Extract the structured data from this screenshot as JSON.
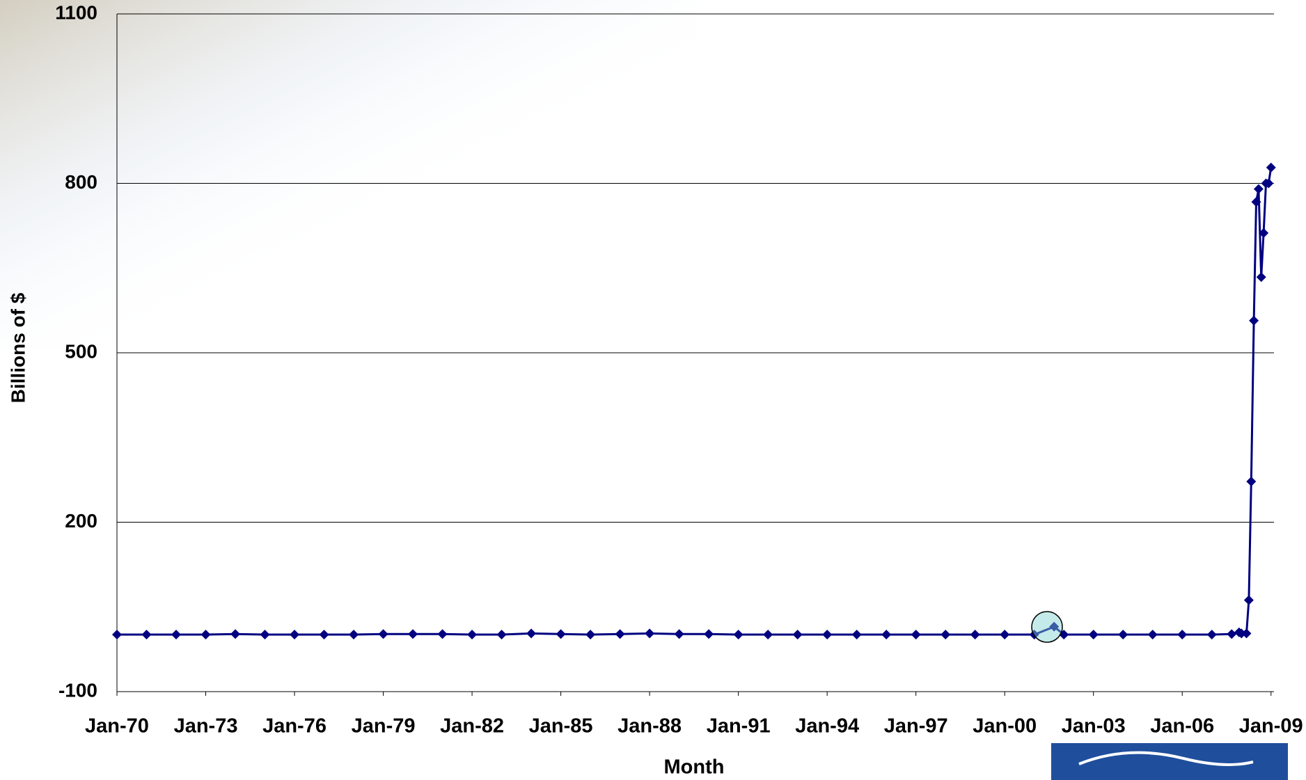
{
  "chart_data": {
    "type": "line",
    "x_label": "Month",
    "y_label": "Billions of $",
    "x": [
      1970,
      1971,
      1972,
      1973,
      1974,
      1975,
      1976,
      1977,
      1978,
      1979,
      1980,
      1981,
      1982,
      1983,
      1984,
      1985,
      1986,
      1987,
      1988,
      1989,
      1990,
      1991,
      1992,
      1993,
      1994,
      1995,
      1996,
      1997,
      1998,
      1999,
      2000,
      2001,
      2001.67,
      2002,
      2003,
      2004,
      2005,
      2006,
      2007,
      2007.67,
      2007.92,
      2008,
      2008.17,
      2008.25,
      2008.33,
      2008.42,
      2008.5,
      2008.58,
      2008.67,
      2008.75,
      2008.83,
      2008.92,
      2009
    ],
    "values": [
      1,
      1,
      1,
      1,
      2,
      1,
      1,
      1,
      1,
      2,
      2,
      2,
      1,
      1,
      3,
      2,
      1,
      2,
      3,
      2,
      2,
      1,
      1,
      1,
      1,
      1,
      1,
      1,
      1,
      1,
      1,
      1,
      15,
      1,
      1,
      1,
      1,
      1,
      1,
      2,
      5,
      3,
      3,
      62,
      272,
      557,
      767,
      790,
      634,
      712,
      800,
      800,
      828
    ],
    "color": "#000080",
    "xlim": [
      1970,
      2009.1
    ],
    "xticks": [
      {
        "value": 1970,
        "label": "Jan-70"
      },
      {
        "value": 1973,
        "label": "Jan-73"
      },
      {
        "value": 1976,
        "label": "Jan-76"
      },
      {
        "value": 1979,
        "label": "Jan-79"
      },
      {
        "value": 1982,
        "label": "Jan-82"
      },
      {
        "value": 1985,
        "label": "Jan-85"
      },
      {
        "value": 1988,
        "label": "Jan-88"
      },
      {
        "value": 1991,
        "label": "Jan-91"
      },
      {
        "value": 1994,
        "label": "Jan-94"
      },
      {
        "value": 1997,
        "label": "Jan-97"
      },
      {
        "value": 2000,
        "label": "Jan-00"
      },
      {
        "value": 2003,
        "label": "Jan-03"
      },
      {
        "value": 2006,
        "label": "Jan-06"
      },
      {
        "value": 2009,
        "label": "Jan-09"
      }
    ],
    "ylim": [
      -100,
      1100
    ],
    "yticks": [
      -100,
      200,
      500,
      800,
      1100
    ],
    "grid": true
  }
}
